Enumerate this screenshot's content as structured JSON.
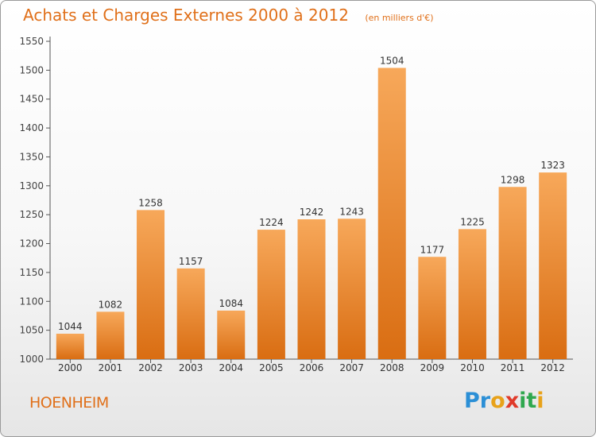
{
  "chart_data": {
    "type": "bar",
    "title": "Achats et Charges Externes 2000 à 2012",
    "subtitle": "(en milliers d'€)",
    "categories": [
      "2000",
      "2001",
      "2002",
      "2003",
      "2004",
      "2005",
      "2006",
      "2007",
      "2008",
      "2009",
      "2010",
      "2011",
      "2012"
    ],
    "values": [
      1044,
      1082,
      1258,
      1157,
      1084,
      1224,
      1242,
      1243,
      1504,
      1177,
      1225,
      1298,
      1323
    ],
    "ylim": [
      1000,
      1550
    ],
    "yticks": [
      1000,
      1050,
      1100,
      1150,
      1200,
      1250,
      1300,
      1350,
      1400,
      1450,
      1500,
      1550
    ],
    "grid": false,
    "bar_color_top": "#f7a85a",
    "bar_color_bottom": "#d96d12"
  },
  "footer": {
    "town": "HOENHEIM",
    "logo_letters": [
      "P",
      "r",
      "o",
      "x",
      "i",
      "t",
      "i"
    ],
    "logo_colors": [
      "#2b8fd6",
      "#2b8fd6",
      "#e8a21a",
      "#e03a2a",
      "#2fa84f",
      "#2fa84f",
      "#e8a21a"
    ]
  },
  "colors": {
    "accent": "#e0701a",
    "axis": "#555555"
  }
}
